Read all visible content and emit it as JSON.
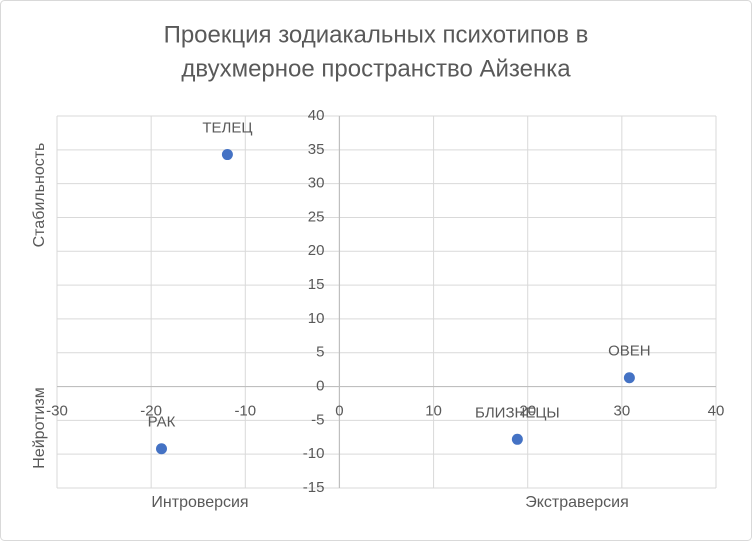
{
  "chart_data": {
    "type": "scatter",
    "title": [
      "Проекция зодиакальных психотипов в",
      "двухмерное пространство Айзенка"
    ],
    "x": [
      30.8,
      -11.9,
      18.9,
      -18.9
    ],
    "values": [
      1.3,
      34.3,
      -7.8,
      -9.2
    ],
    "point_labels": [
      "ОВЕН",
      "ТЕЛЕЦ",
      "БЛИЗНЕЦЫ",
      "РАК"
    ],
    "color": "#4472c4",
    "xlim": [
      -30,
      40
    ],
    "ylim": [
      -15,
      40
    ],
    "xticks": [
      -30,
      -20,
      -10,
      0,
      10,
      20,
      30,
      40
    ],
    "yticks": [
      -15,
      -10,
      -5,
      0,
      5,
      10,
      15,
      20,
      25,
      30,
      35,
      40
    ],
    "grid": true,
    "axis_titles": {
      "y_top": "Стабильность",
      "y_bottom": "Нейротизм",
      "x_left": "Интроверсия",
      "x_right": "Экстраверсия"
    }
  }
}
